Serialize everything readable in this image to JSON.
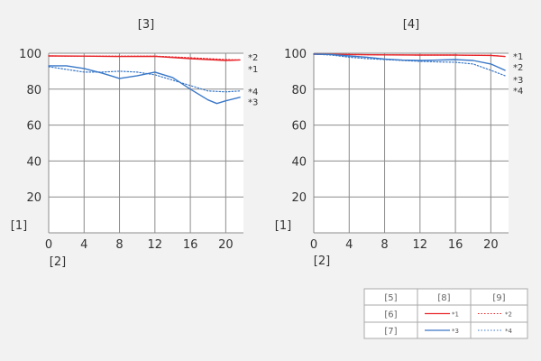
{
  "chart_data": [
    {
      "type": "line",
      "title": "[3]",
      "ylabel": "[1]",
      "xlabel": "[2]",
      "xlim": [
        0,
        22
      ],
      "ylim": [
        0,
        100
      ],
      "xticks": [
        0,
        4,
        8,
        12,
        16,
        20
      ],
      "yticks": [
        20,
        40,
        60,
        80,
        100
      ],
      "grid": true,
      "series": [
        {
          "name": "*1",
          "color": "#e8262b",
          "style": "solid",
          "x": [
            0,
            4,
            8,
            12,
            16,
            20,
            21.6
          ],
          "y": [
            98.5,
            98.4,
            98.2,
            98.3,
            97.0,
            96.0,
            96.3
          ]
        },
        {
          "name": "*2",
          "color": "#e8262b",
          "style": "dotted",
          "x": [
            0,
            4,
            8,
            12,
            16,
            20,
            21.6
          ],
          "y": [
            98.5,
            98.4,
            98.4,
            98.4,
            97.5,
            96.5,
            96.3
          ]
        },
        {
          "name": "*3",
          "color": "#3a78c8",
          "style": "solid",
          "x": [
            0,
            2,
            4,
            6,
            8,
            10,
            12,
            14,
            16,
            18,
            19,
            20,
            21.6
          ],
          "y": [
            93,
            93,
            91.5,
            89,
            86,
            87.5,
            89.5,
            86.5,
            80,
            74,
            72,
            73.5,
            75.5
          ]
        },
        {
          "name": "*4",
          "color": "#3a78c8",
          "style": "dotted",
          "x": [
            0,
            2,
            4,
            6,
            8,
            10,
            12,
            14,
            16,
            18,
            20,
            21.6
          ],
          "y": [
            92.5,
            91,
            89.5,
            89.5,
            90,
            89.5,
            88,
            85,
            82,
            79,
            78.5,
            79
          ]
        }
      ],
      "end_labels": [
        {
          "text": "*2",
          "y": 98
        },
        {
          "text": "*1",
          "y": 91.5
        },
        {
          "text": "*4",
          "y": 79
        },
        {
          "text": "*3",
          "y": 73
        }
      ]
    },
    {
      "type": "line",
      "title": "[4]",
      "ylabel": "[1]",
      "xlabel": "[2]",
      "xlim": [
        0,
        22
      ],
      "ylim": [
        0,
        100
      ],
      "xticks": [
        0,
        4,
        8,
        12,
        16,
        20
      ],
      "yticks": [
        20,
        40,
        60,
        80,
        100
      ],
      "grid": true,
      "series": [
        {
          "name": "*1",
          "color": "#e8262b",
          "style": "solid",
          "x": [
            0,
            4,
            8,
            12,
            16,
            20,
            21.6
          ],
          "y": [
            99.5,
            99.3,
            99.1,
            99.0,
            99.0,
            98.8,
            98.2
          ]
        },
        {
          "name": "*2",
          "color": "#e8262b",
          "style": "dotted",
          "x": [
            0,
            4,
            8,
            12,
            16,
            20,
            21.6
          ],
          "y": [
            99.5,
            99.3,
            99.1,
            99.0,
            99.0,
            98.8,
            98.2
          ]
        },
        {
          "name": "*3",
          "color": "#3a78c8",
          "style": "solid",
          "x": [
            0,
            2,
            4,
            6,
            8,
            10,
            12,
            14,
            16,
            18,
            20,
            21.6
          ],
          "y": [
            99.5,
            99.3,
            98.5,
            97.8,
            96.8,
            96.2,
            96,
            96.2,
            96.5,
            96,
            94,
            90.5
          ]
        },
        {
          "name": "*4",
          "color": "#3a78c8",
          "style": "dotted",
          "x": [
            0,
            2,
            4,
            6,
            8,
            10,
            12,
            14,
            16,
            18,
            20,
            21.6
          ],
          "y": [
            99.5,
            99,
            97.8,
            97,
            96.5,
            96,
            95.5,
            95.2,
            95,
            94,
            90.5,
            87.5
          ]
        }
      ],
      "end_labels": [
        {
          "text": "*1",
          "y": 98.5
        },
        {
          "text": "*2",
          "y": 92.5
        },
        {
          "text": "*3",
          "y": 85.5
        },
        {
          "text": "*4",
          "y": 79.5
        }
      ]
    }
  ],
  "legend": {
    "headers": [
      "[5]",
      "[8]",
      "[9]"
    ],
    "rows": [
      {
        "label": "[6]",
        "solid": "*1",
        "dotted": "*2",
        "color": "#e8262b"
      },
      {
        "label": "[7]",
        "solid": "*3",
        "dotted": "*4",
        "color": "#3a78c8"
      }
    ]
  }
}
